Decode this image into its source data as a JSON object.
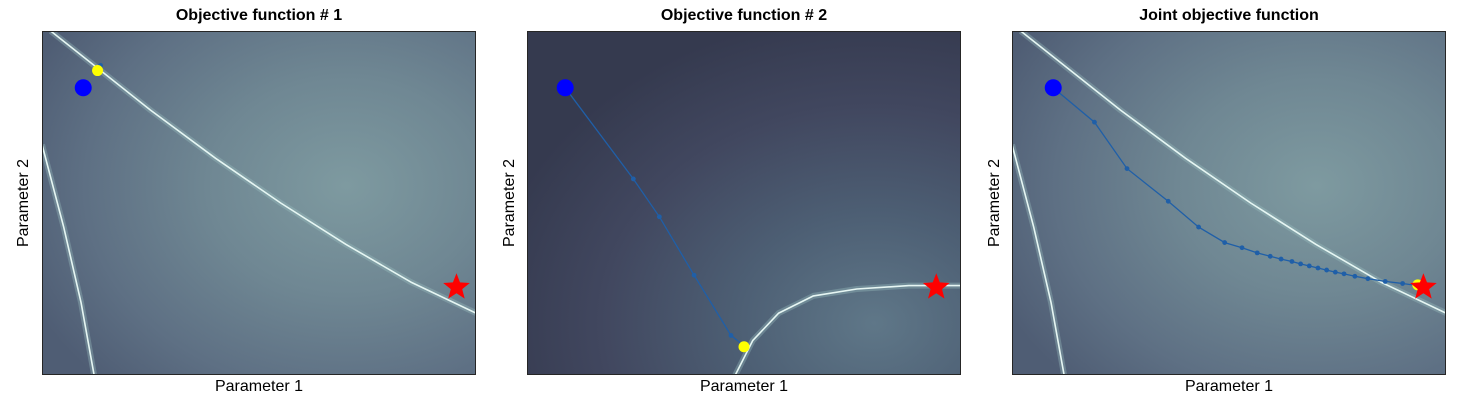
{
  "chart_data": [
    {
      "type": "contour",
      "title": "Objective function # 1",
      "xlabel": "Parameter 1",
      "ylabel": "Parameter 2",
      "xlim": [
        0,
        1
      ],
      "ylim": [
        0,
        1
      ],
      "ticks": "none",
      "colormap": "bone (dark blue-grey to pale cyan)",
      "ridges": [
        [
          [
            0.02,
            1.0
          ],
          [
            0.12,
            0.9
          ],
          [
            0.25,
            0.77
          ],
          [
            0.4,
            0.63
          ],
          [
            0.55,
            0.5
          ],
          [
            0.7,
            0.38
          ],
          [
            0.85,
            0.27
          ],
          [
            1.0,
            0.18
          ]
        ],
        [
          [
            0.0,
            0.67
          ],
          [
            0.05,
            0.43
          ],
          [
            0.09,
            0.21
          ],
          [
            0.12,
            0.0
          ]
        ]
      ],
      "start": {
        "x": 0.095,
        "y": 0.835,
        "color": "#0000ff"
      },
      "optimum": {
        "x": 0.955,
        "y": 0.255,
        "color": "#ff0000",
        "marker": "star"
      },
      "path": {
        "x": [
          0.128,
          0.135
        ],
        "y": [
          0.885,
          0.9
        ],
        "color": "#1f5fa8"
      },
      "end": {
        "x": 0.128,
        "y": 0.885,
        "color": "#ffff00"
      }
    },
    {
      "type": "contour",
      "title": "Objective function # 2",
      "xlabel": "Parameter 1",
      "ylabel": "Parameter 2",
      "xlim": [
        0,
        1
      ],
      "ylim": [
        0,
        1
      ],
      "ticks": "none",
      "colormap": "bone (dark blue-grey to pale cyan)",
      "ridges": [
        [
          [
            0.48,
            0.0
          ],
          [
            0.52,
            0.1
          ],
          [
            0.58,
            0.18
          ],
          [
            0.66,
            0.23
          ],
          [
            0.76,
            0.25
          ],
          [
            0.88,
            0.26
          ],
          [
            1.0,
            0.26
          ]
        ]
      ],
      "start": {
        "x": 0.088,
        "y": 0.835,
        "color": "#0000ff"
      },
      "optimum": {
        "x": 0.943,
        "y": 0.255,
        "color": "#ff0000",
        "marker": "star"
      },
      "path": {
        "x": [
          0.088,
          0.245,
          0.305,
          0.385,
          0.47,
          0.5
        ],
        "y": [
          0.835,
          0.57,
          0.46,
          0.29,
          0.115,
          0.085
        ],
        "color": "#1f5fa8"
      },
      "end": {
        "x": 0.5,
        "y": 0.082,
        "color": "#ffff00"
      }
    },
    {
      "type": "contour",
      "title": "Joint objective function",
      "xlabel": "Parameter 1",
      "ylabel": "Parameter 2",
      "xlim": [
        0,
        1
      ],
      "ylim": [
        0,
        1
      ],
      "ticks": "none",
      "colormap": "bone (dark blue-grey to pale cyan)",
      "ridges": [
        [
          [
            0.02,
            1.0
          ],
          [
            0.12,
            0.9
          ],
          [
            0.25,
            0.77
          ],
          [
            0.4,
            0.63
          ],
          [
            0.55,
            0.5
          ],
          [
            0.7,
            0.38
          ],
          [
            0.85,
            0.27
          ],
          [
            1.0,
            0.18
          ]
        ],
        [
          [
            0.0,
            0.67
          ],
          [
            0.05,
            0.43
          ],
          [
            0.09,
            0.21
          ],
          [
            0.12,
            0.0
          ]
        ]
      ],
      "start": {
        "x": 0.095,
        "y": 0.835,
        "color": "#0000ff"
      },
      "optimum": {
        "x": 0.948,
        "y": 0.255,
        "color": "#ff0000",
        "marker": "star"
      },
      "path": {
        "x": [
          0.095,
          0.19,
          0.265,
          0.36,
          0.43,
          0.49,
          0.53,
          0.565,
          0.595,
          0.62,
          0.645,
          0.665,
          0.685,
          0.705,
          0.725,
          0.745,
          0.765,
          0.79,
          0.82,
          0.86,
          0.9,
          0.935
        ],
        "y": [
          0.835,
          0.735,
          0.6,
          0.505,
          0.43,
          0.385,
          0.37,
          0.355,
          0.345,
          0.337,
          0.33,
          0.323,
          0.317,
          0.311,
          0.305,
          0.299,
          0.294,
          0.287,
          0.28,
          0.272,
          0.266,
          0.26
        ],
        "color": "#1f5fa8"
      },
      "end": {
        "x": 0.935,
        "y": 0.262,
        "color": "#ffff00"
      }
    }
  ]
}
